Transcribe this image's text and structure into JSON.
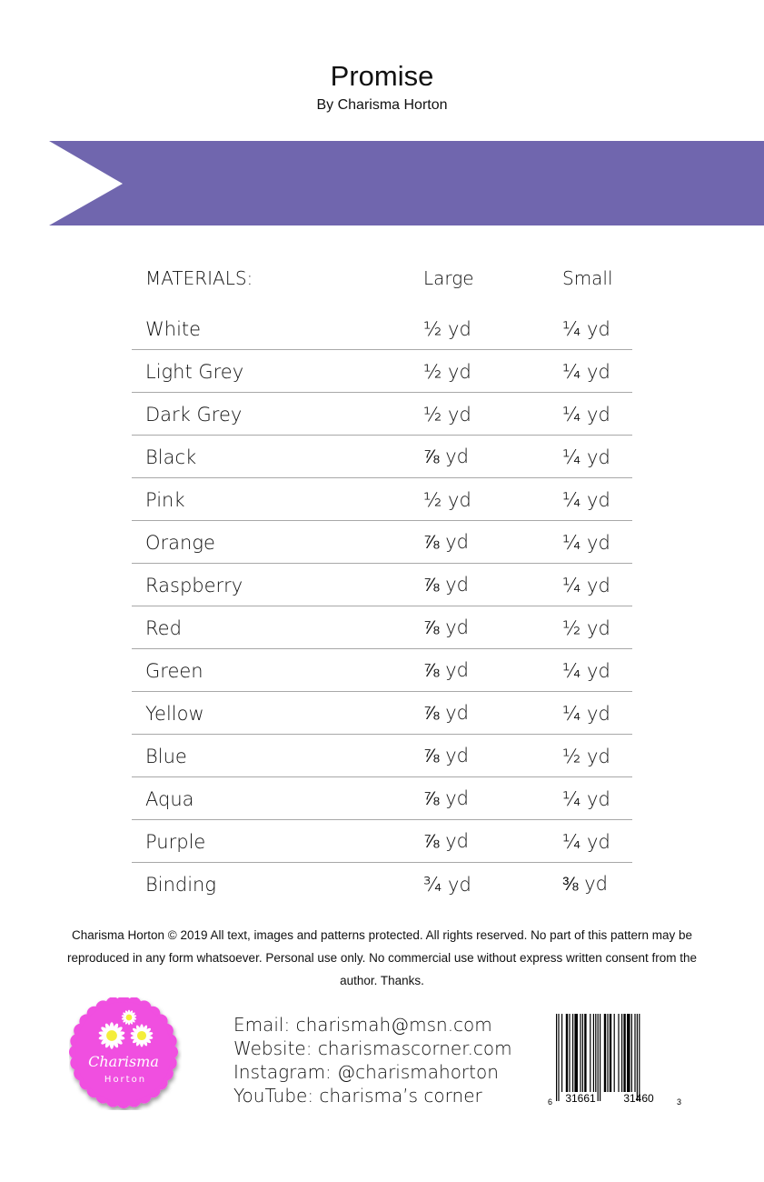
{
  "header": {
    "title": "Promise",
    "byline": "By Charisma Horton"
  },
  "colors": {
    "banner": "#7066ae",
    "logo_pink": "#f04fe0"
  },
  "materials": {
    "headers": [
      "MATERIALS:",
      "Large",
      "Small"
    ],
    "rows": [
      [
        "White",
        "½ yd",
        "¼ yd"
      ],
      [
        "Light Grey",
        "½ yd",
        "¼ yd"
      ],
      [
        "Dark Grey",
        "½ yd",
        "¼ yd"
      ],
      [
        "Black",
        "⅞ yd",
        "¼ yd"
      ],
      [
        "Pink",
        "½ yd",
        "¼ yd"
      ],
      [
        "Orange",
        "⅞ yd",
        "¼ yd"
      ],
      [
        "Raspberry",
        "⅞ yd",
        "¼ yd"
      ],
      [
        "Red",
        "⅞ yd",
        "½ yd"
      ],
      [
        "Green",
        "⅞ yd",
        "¼ yd"
      ],
      [
        "Yellow",
        "⅞ yd",
        "¼ yd"
      ],
      [
        "Blue",
        "⅞ yd",
        "½ yd"
      ],
      [
        "Aqua",
        "⅞ yd",
        "¼ yd"
      ],
      [
        "Purple",
        "⅞ yd",
        "¼ yd"
      ],
      [
        "Binding",
        "¾ yd",
        "⅜ yd"
      ]
    ]
  },
  "legal": {
    "text": "Charisma Horton © 2019 All text, images and patterns protected. All rights reserved. No part of this pattern may be reproduced in any form whatsoever. Personal use only. No commercial use without express written consent from the author.  Thanks."
  },
  "logo": {
    "line1": "Charisma",
    "line2": "Horton"
  },
  "contacts": [
    "Email: charismah@msn.com",
    "Website: charismascorner.com",
    "Instagram: @charismahorton",
    "YouTube: charisma’s corner"
  ],
  "barcode": {
    "digits": [
      "6",
      "31661",
      "31460",
      "3"
    ]
  }
}
